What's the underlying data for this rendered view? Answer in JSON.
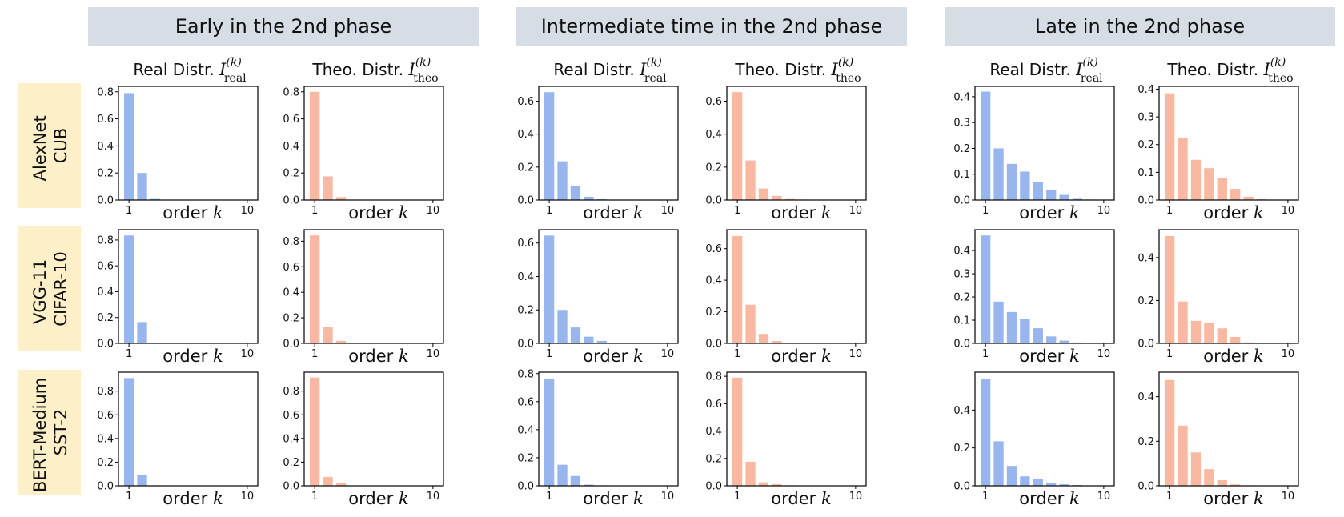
{
  "phases": [
    "Early in the 2nd phase",
    "Intermediate time in the 2nd phase",
    "Late in the 2nd phase"
  ],
  "rows": [
    {
      "model": "AlexNet",
      "dataset": "CUB"
    },
    {
      "model": "VGG-11",
      "dataset": "CIFAR-10"
    },
    {
      "model": "BERT-Medium",
      "dataset": "SST-2"
    }
  ],
  "subplot_titles": {
    "real": {
      "text": "Real Distr.",
      "symbol": "I",
      "sup": "(k)",
      "sub": "real"
    },
    "theo": {
      "text": "Theo. Distr.",
      "symbol": "I",
      "sup": "(k)",
      "sub": "theo"
    }
  },
  "xlabel": {
    "text": "order",
    "var": "k"
  },
  "colors": {
    "real": "#98b5ee",
    "theo": "#f8b8a1",
    "phase_box": "#d6dde5",
    "row_box": "#fdf0c8"
  },
  "chart_data": {
    "type": "bar",
    "x": [
      1,
      2,
      3,
      4,
      5,
      6,
      7,
      8,
      9,
      10
    ],
    "xticks": [
      "1",
      "10"
    ],
    "panels": [
      {
        "row": 0,
        "phase": 0,
        "kind": "real",
        "ylim": [
          0,
          0.84
        ],
        "yticks": [
          "0.0",
          "0.2",
          "0.4",
          "0.6",
          "0.8"
        ],
        "values": [
          0.79,
          0.2,
          0.008,
          0.002,
          0.001,
          0,
          0,
          0,
          0,
          0
        ]
      },
      {
        "row": 0,
        "phase": 0,
        "kind": "theo",
        "ylim": [
          0,
          0.84
        ],
        "yticks": [
          "0.0",
          "0.2",
          "0.4",
          "0.6",
          "0.8"
        ],
        "values": [
          0.8,
          0.175,
          0.022,
          0.003,
          0.001,
          0,
          0,
          0,
          0,
          0
        ]
      },
      {
        "row": 0,
        "phase": 1,
        "kind": "real",
        "ylim": [
          0,
          0.69
        ],
        "yticks": [
          "0.0",
          "0.2",
          "0.4",
          "0.6"
        ],
        "values": [
          0.655,
          0.235,
          0.085,
          0.02,
          0.005,
          0.002,
          0.001,
          0,
          0,
          0
        ]
      },
      {
        "row": 0,
        "phase": 1,
        "kind": "theo",
        "ylim": [
          0,
          0.69
        ],
        "yticks": [
          "0.0",
          "0.2",
          "0.4",
          "0.6"
        ],
        "values": [
          0.655,
          0.24,
          0.07,
          0.025,
          0.006,
          0.003,
          0.001,
          0,
          0,
          0
        ]
      },
      {
        "row": 0,
        "phase": 2,
        "kind": "real",
        "ylim": [
          0,
          0.44
        ],
        "yticks": [
          "0.0",
          "0.1",
          "0.2",
          "0.3",
          "0.4"
        ],
        "values": [
          0.42,
          0.2,
          0.14,
          0.11,
          0.07,
          0.04,
          0.02,
          0.005,
          0.002,
          0.001
        ]
      },
      {
        "row": 0,
        "phase": 2,
        "kind": "theo",
        "ylim": [
          0,
          0.41
        ],
        "yticks": [
          "0.0",
          "0.1",
          "0.2",
          "0.3",
          "0.4"
        ],
        "values": [
          0.385,
          0.225,
          0.145,
          0.115,
          0.08,
          0.04,
          0.012,
          0.003,
          0.001,
          0
        ]
      },
      {
        "row": 1,
        "phase": 0,
        "kind": "real",
        "ylim": [
          0,
          0.88
        ],
        "yticks": [
          "0.0",
          "0.2",
          "0.4",
          "0.6",
          "0.8"
        ],
        "values": [
          0.835,
          0.165,
          0.003,
          0.001,
          0,
          0,
          0,
          0,
          0,
          0
        ]
      },
      {
        "row": 1,
        "phase": 0,
        "kind": "theo",
        "ylim": [
          0,
          0.89
        ],
        "yticks": [
          "0.0",
          "0.2",
          "0.4",
          "0.6",
          "0.8"
        ],
        "values": [
          0.845,
          0.13,
          0.02,
          0.003,
          0.001,
          0,
          0,
          0,
          0,
          0
        ]
      },
      {
        "row": 1,
        "phase": 1,
        "kind": "real",
        "ylim": [
          0,
          0.68
        ],
        "yticks": [
          "0.0",
          "0.2",
          "0.4",
          "0.6"
        ],
        "values": [
          0.645,
          0.2,
          0.095,
          0.04,
          0.015,
          0.005,
          0.002,
          0.001,
          0,
          0
        ]
      },
      {
        "row": 1,
        "phase": 1,
        "kind": "theo",
        "ylim": [
          0,
          0.72
        ],
        "yticks": [
          "0.0",
          "0.2",
          "0.4",
          "0.6"
        ],
        "values": [
          0.68,
          0.245,
          0.06,
          0.015,
          0.004,
          0.001,
          0,
          0,
          0,
          0
        ]
      },
      {
        "row": 1,
        "phase": 2,
        "kind": "real",
        "ylim": [
          0,
          0.49
        ],
        "yticks": [
          "0.0",
          "0.1",
          "0.2",
          "0.3",
          "0.4"
        ],
        "values": [
          0.465,
          0.18,
          0.135,
          0.105,
          0.065,
          0.03,
          0.012,
          0.004,
          0.001,
          0
        ]
      },
      {
        "row": 1,
        "phase": 2,
        "kind": "theo",
        "ylim": [
          0,
          0.53
        ],
        "yticks": [
          "0.0",
          "0.2",
          "0.4"
        ],
        "values": [
          0.5,
          0.195,
          0.105,
          0.095,
          0.07,
          0.03,
          0.005,
          0.001,
          0,
          0
        ]
      },
      {
        "row": 2,
        "phase": 0,
        "kind": "real",
        "ylim": [
          0,
          0.96
        ],
        "yticks": [
          "0.0",
          "0.2",
          "0.4",
          "0.6",
          "0.8"
        ],
        "values": [
          0.91,
          0.09,
          0.004,
          0.001,
          0,
          0,
          0,
          0,
          0,
          0
        ]
      },
      {
        "row": 2,
        "phase": 0,
        "kind": "theo",
        "ylim": [
          0,
          0.96
        ],
        "yticks": [
          "0.0",
          "0.2",
          "0.4",
          "0.6",
          "0.8"
        ],
        "values": [
          0.915,
          0.075,
          0.02,
          0.003,
          0.001,
          0,
          0,
          0,
          0,
          0
        ]
      },
      {
        "row": 2,
        "phase": 1,
        "kind": "real",
        "ylim": [
          0,
          0.81
        ],
        "yticks": [
          "0.0",
          "0.2",
          "0.4",
          "0.6",
          "0.8"
        ],
        "values": [
          0.765,
          0.15,
          0.07,
          0.008,
          0.003,
          0.001,
          0,
          0,
          0,
          0
        ]
      },
      {
        "row": 2,
        "phase": 1,
        "kind": "theo",
        "ylim": [
          0,
          0.83
        ],
        "yticks": [
          "0.0",
          "0.2",
          "0.4",
          "0.6",
          "0.8"
        ],
        "values": [
          0.79,
          0.175,
          0.025,
          0.012,
          0.004,
          0.001,
          0,
          0,
          0,
          0
        ]
      },
      {
        "row": 2,
        "phase": 2,
        "kind": "real",
        "ylim": [
          0,
          0.6
        ],
        "yticks": [
          "0.0",
          "0.2",
          "0.4"
        ],
        "values": [
          0.565,
          0.235,
          0.105,
          0.05,
          0.035,
          0.015,
          0.008,
          0.004,
          0.002,
          0.001
        ]
      },
      {
        "row": 2,
        "phase": 2,
        "kind": "theo",
        "ylim": [
          0,
          0.51
        ],
        "yticks": [
          "0.0",
          "0.2",
          "0.4"
        ],
        "values": [
          0.475,
          0.27,
          0.15,
          0.075,
          0.025,
          0.006,
          0.002,
          0.001,
          0,
          0
        ]
      }
    ]
  }
}
